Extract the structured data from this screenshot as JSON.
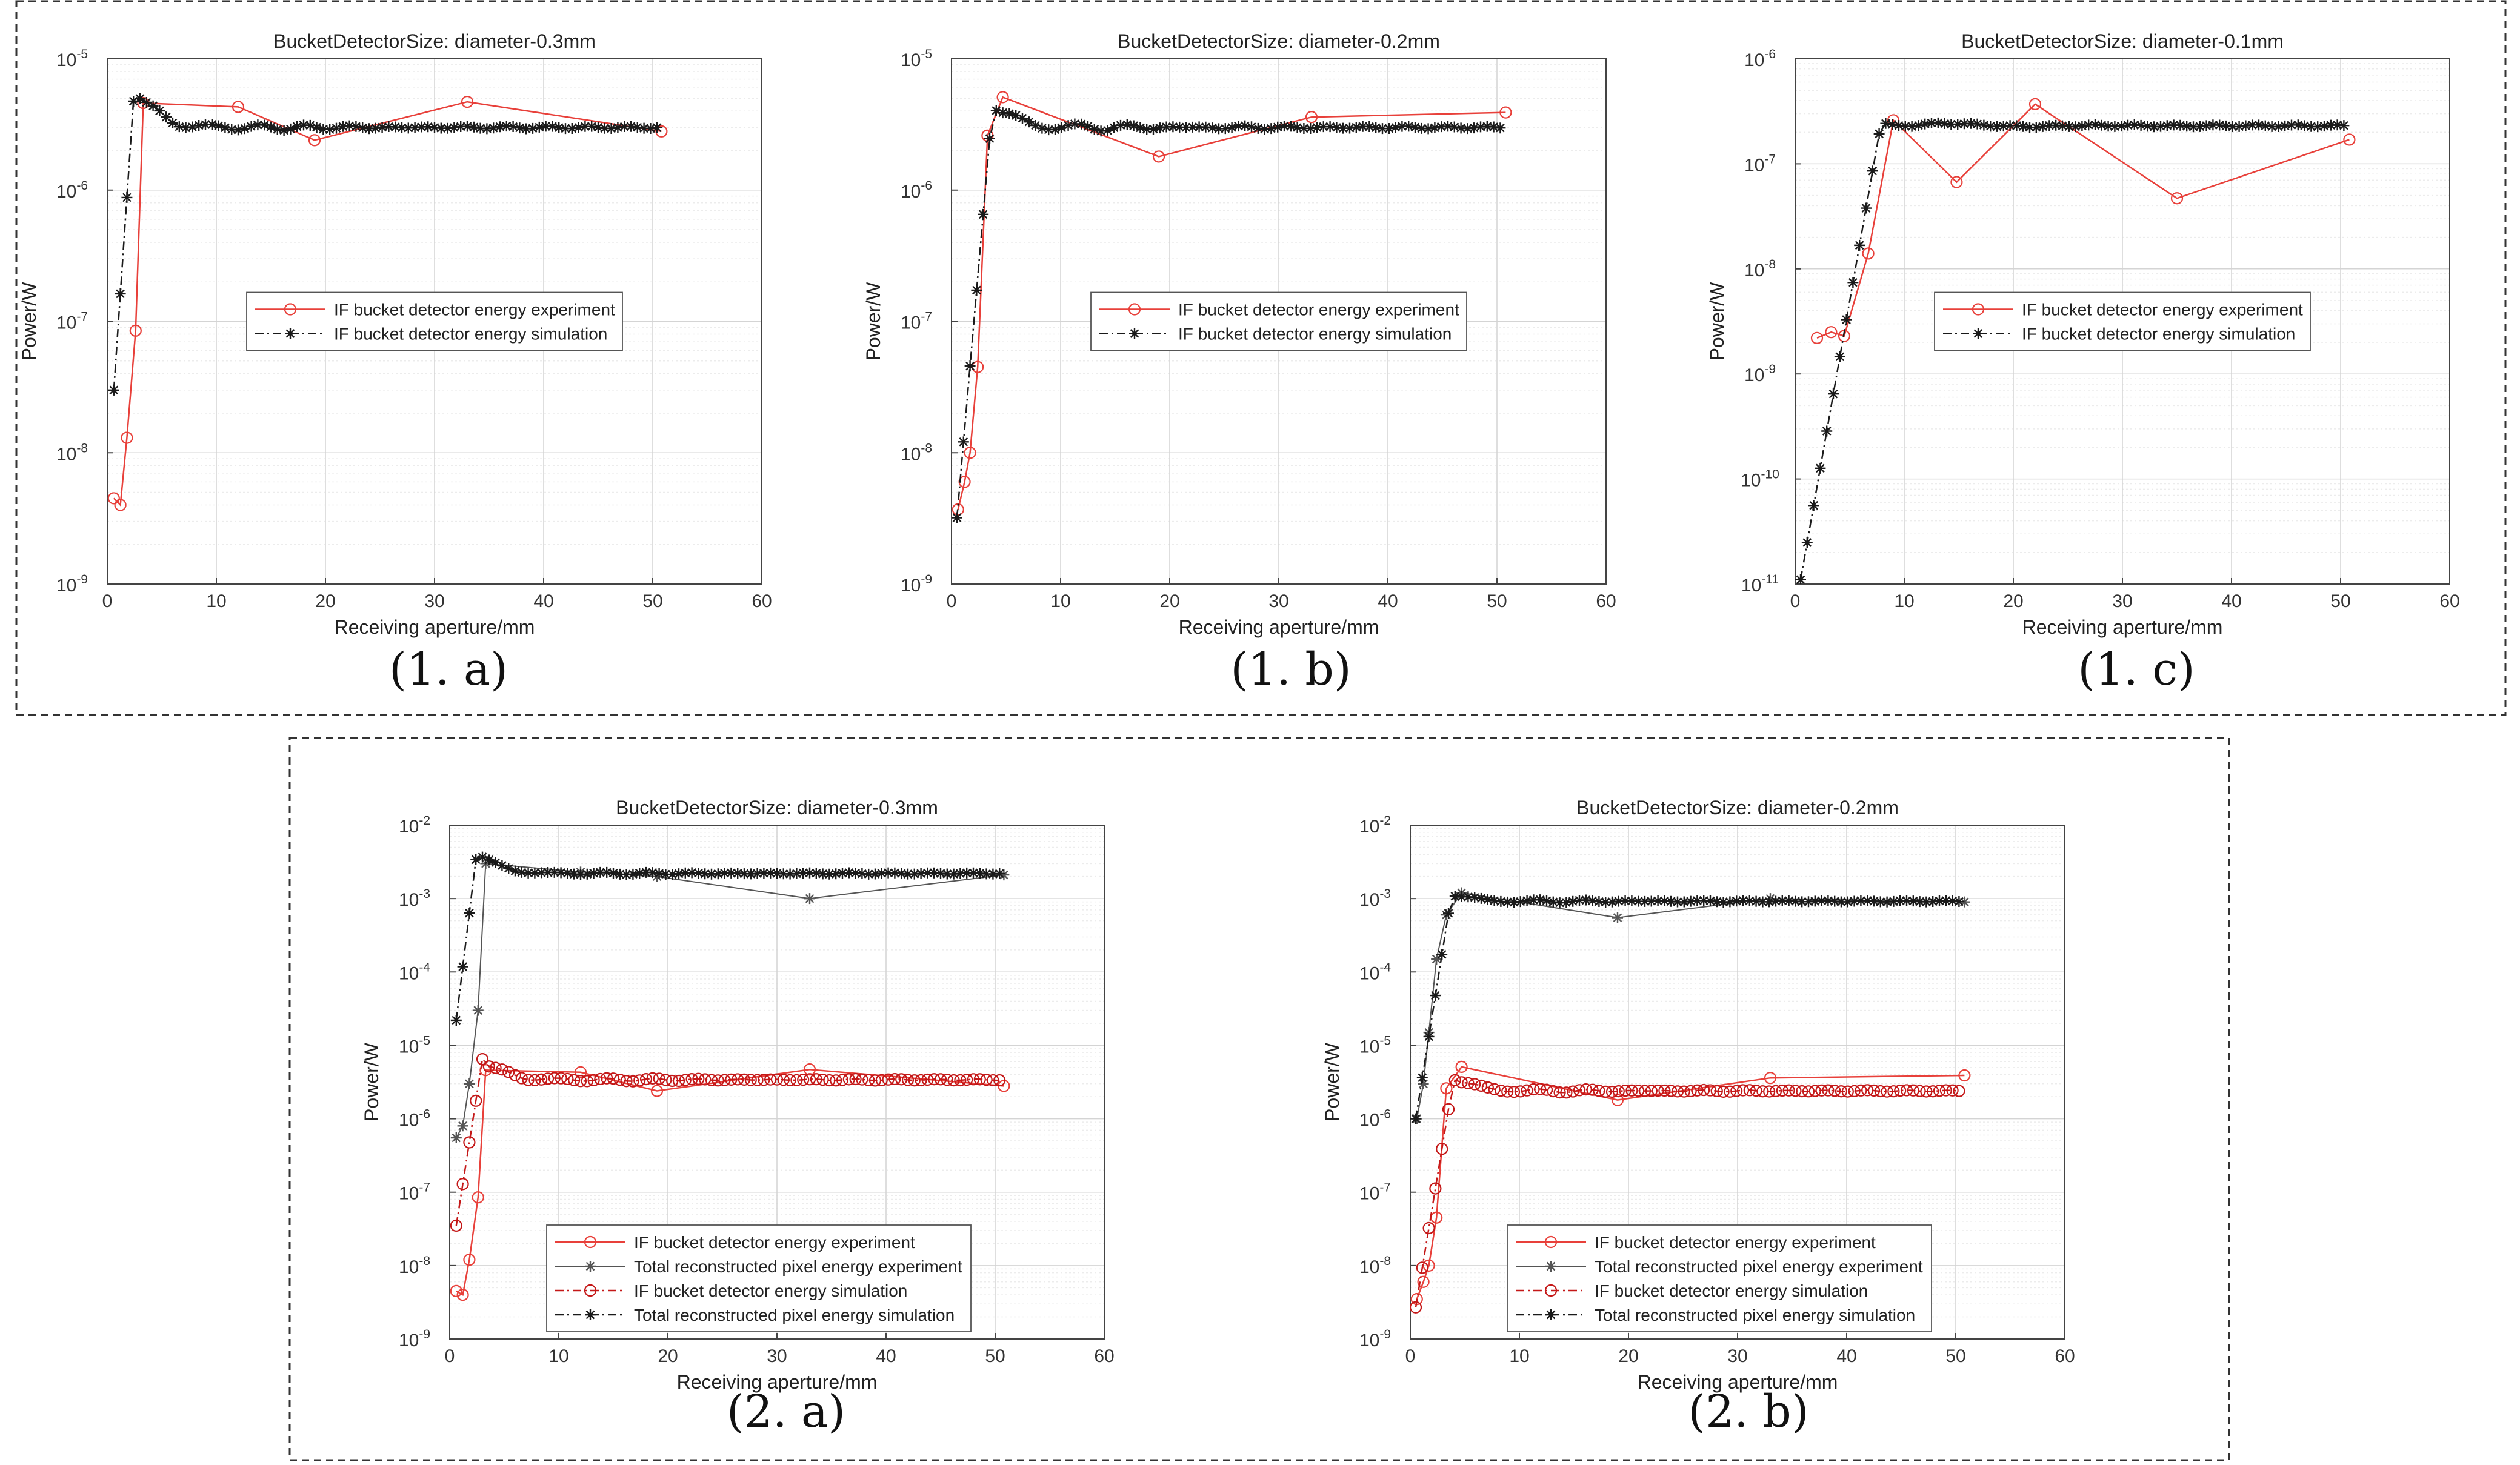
{
  "colors": {
    "experiment_red": "#e8403a",
    "simulation_black": "#1a1a1a",
    "axis": "#444444",
    "grid_major": "#d4d4d4",
    "grid_minor": "#ececec",
    "frame": "#333333"
  },
  "chart_data": [
    {
      "id": "1a",
      "type": "line",
      "panel_label": "(1. a)",
      "title": "BucketDetectorSize: diameter-0.3mm",
      "xlabel": "Receiving aperture/mm",
      "ylabel": "Power/W",
      "yscale": "log",
      "xlim": [
        0,
        60
      ],
      "xticks": [
        0,
        10,
        20,
        30,
        40,
        50,
        60
      ],
      "ylim_exp": [
        -9,
        -5
      ],
      "yticks": [
        "10^-9",
        "10^-8",
        "10^-7",
        "10^-6",
        "10^-5"
      ],
      "legend_position": "center",
      "series": [
        {
          "name": "IF bucket detector energy experiment",
          "kind": "exp_bucket",
          "x": [
            0.6,
            1.2,
            1.8,
            2.6,
            3.3,
            12.0,
            19.0,
            33.0,
            50.8
          ],
          "y": [
            4.5e-09,
            4e-09,
            1.3e-08,
            8.5e-08,
            4.6e-06,
            4.3e-06,
            2.4e-06,
            4.7e-06,
            2.8e-06
          ]
        },
        {
          "name": "IF bucket detector energy simulation",
          "kind": "sim_total",
          "func": {
            "x0": 0.6,
            "x1": 50.5,
            "step": 0.6,
            "rise_x0": 0.6,
            "rise_x1": 2.5,
            "rise_y0": 3e-08,
            "peak_x": 2.5,
            "peak": 6.3e-06,
            "plateau": 3e-06,
            "ripple_amp": 0.12,
            "ripple_period": 4.5,
            "ripple_decay": 10
          }
        }
      ]
    },
    {
      "id": "1b",
      "type": "line",
      "panel_label": "(1. b)",
      "title": "BucketDetectorSize: diameter-0.2mm",
      "xlabel": "Receiving aperture/mm",
      "ylabel": "Power/W",
      "yscale": "log",
      "xlim": [
        0,
        60
      ],
      "xticks": [
        0,
        10,
        20,
        30,
        40,
        50,
        60
      ],
      "ylim_exp": [
        -9,
        -5
      ],
      "yticks": [
        "10^-9",
        "10^-8",
        "10^-7",
        "10^-6",
        "10^-5"
      ],
      "legend_position": "center",
      "series": [
        {
          "name": "IF bucket detector energy experiment",
          "kind": "exp_bucket",
          "x": [
            0.6,
            1.2,
            1.7,
            2.4,
            3.3,
            4.7,
            19.0,
            33.0,
            50.8
          ],
          "y": [
            3.7e-09,
            6e-09,
            1e-08,
            4.5e-08,
            2.6e-06,
            5.1e-06,
            1.8e-06,
            3.6e-06,
            3.9e-06
          ]
        },
        {
          "name": "IF bucket detector energy simulation",
          "kind": "sim_total",
          "func": {
            "x0": 0.5,
            "x1": 50.5,
            "step": 0.6,
            "rise_x0": 0.5,
            "rise_x1": 3.8,
            "rise_y0": 3.2e-09,
            "peak_x": 3.8,
            "peak": 4.8e-06,
            "plateau": 3e-06,
            "ripple_amp": 0.12,
            "ripple_period": 5.0,
            "ripple_decay": 10
          }
        }
      ]
    },
    {
      "id": "1c",
      "type": "line",
      "panel_label": "(1. c)",
      "title": "BucketDetectorSize: diameter-0.1mm",
      "xlabel": "Receiving aperture/mm",
      "ylabel": "Power/W",
      "yscale": "log",
      "xlim": [
        0,
        60
      ],
      "xticks": [
        0,
        10,
        20,
        30,
        40,
        50,
        60
      ],
      "ylim_exp": [
        -11,
        -6
      ],
      "yticks": [
        "10^-11",
        "10^-10",
        "10^-9",
        "10^-8",
        "10^-7",
        "10^-6"
      ],
      "legend_position": "center",
      "series": [
        {
          "name": "IF bucket detector energy experiment",
          "kind": "exp_bucket",
          "x": [
            2.0,
            3.3,
            4.5,
            6.7,
            9.0,
            14.8,
            22.0,
            35.0,
            50.8
          ],
          "y": [
            2.2e-09,
            2.5e-09,
            2.3e-09,
            1.4e-08,
            2.6e-07,
            6.7e-08,
            3.7e-07,
            4.7e-08,
            1.7e-07
          ]
        },
        {
          "name": "IF bucket detector energy simulation",
          "kind": "sim_total",
          "func": {
            "x0": 0.5,
            "x1": 50.5,
            "step": 0.6,
            "rise_x0": 0.5,
            "rise_x1": 8.0,
            "rise_y0": 1.1e-11,
            "peak_x": 8.0,
            "peak": 2.9e-07,
            "plateau": 2.3e-07,
            "ripple_amp": 0.15,
            "ripple_period": 14,
            "ripple_decay": 6
          }
        }
      ]
    },
    {
      "id": "2a",
      "type": "line",
      "panel_label": "(2. a)",
      "title": "BucketDetectorSize: diameter-0.3mm",
      "xlabel": "Receiving aperture/mm",
      "ylabel": "Power/W",
      "yscale": "log",
      "xlim": [
        0,
        60
      ],
      "xticks": [
        0,
        10,
        20,
        30,
        40,
        50,
        60
      ],
      "ylim_exp": [
        -9,
        -2
      ],
      "yticks": [
        "10^-9",
        "10^-8",
        "10^-7",
        "10^-6",
        "10^-5",
        "10^-4",
        "10^-3",
        "10^-2"
      ],
      "legend_position": "bottom-center",
      "series": [
        {
          "name": "IF bucket detector energy experiment",
          "kind": "exp_bucket",
          "x": [
            0.6,
            1.2,
            1.8,
            2.6,
            3.3,
            12.0,
            19.0,
            33.0,
            50.8
          ],
          "y": [
            4.5e-09,
            4e-09,
            1.2e-08,
            8.5e-08,
            4.6e-06,
            4.3e-06,
            2.4e-06,
            4.7e-06,
            2.8e-06
          ]
        },
        {
          "name": "Total reconstructed pixel energy experiment",
          "kind": "exp_total",
          "x": [
            0.6,
            1.2,
            1.8,
            2.6,
            3.3,
            12.0,
            19.0,
            33.0,
            50.8
          ],
          "y": [
            5.5e-07,
            8e-07,
            3e-06,
            3e-05,
            0.003,
            0.0023,
            0.002,
            0.001,
            0.0021
          ]
        },
        {
          "name": "IF bucket detector energy simulation",
          "kind": "sim_bucket",
          "func": {
            "x0": 0.6,
            "x1": 50.5,
            "step": 0.6,
            "rise_x0": 0.6,
            "rise_x1": 3.0,
            "rise_y0": 3.5e-08,
            "peak_x": 3.0,
            "peak": 6.5e-06,
            "plateau": 3.4e-06,
            "ripple_amp": 0.12,
            "ripple_period": 4.5,
            "ripple_decay": 10
          }
        },
        {
          "name": "Total reconstructed pixel energy simulation",
          "kind": "sim_total",
          "func": {
            "x0": 0.6,
            "x1": 50.5,
            "step": 0.6,
            "rise_x0": 0.6,
            "rise_x1": 2.5,
            "rise_y0": 2.2e-05,
            "peak_x": 2.5,
            "peak": 0.0045,
            "plateau": 0.0022,
            "ripple_amp": 0.08,
            "ripple_period": 4.5,
            "ripple_decay": 10
          }
        }
      ]
    },
    {
      "id": "2b",
      "type": "line",
      "panel_label": "(2. b)",
      "title": "BucketDetectorSize: diameter-0.2mm",
      "xlabel": "Receiving aperture/mm",
      "ylabel": "Power/W",
      "yscale": "log",
      "xlim": [
        0,
        60
      ],
      "xticks": [
        0,
        10,
        20,
        30,
        40,
        50,
        60
      ],
      "ylim_exp": [
        -9,
        -2
      ],
      "yticks": [
        "10^-9",
        "10^-8",
        "10^-7",
        "10^-6",
        "10^-5",
        "10^-4",
        "10^-3",
        "10^-2"
      ],
      "legend_position": "bottom-center",
      "series": [
        {
          "name": "IF bucket detector energy experiment",
          "kind": "exp_bucket",
          "x": [
            0.6,
            1.2,
            1.7,
            2.4,
            3.3,
            4.7,
            19.0,
            33.0,
            50.8
          ],
          "y": [
            3.5e-09,
            6e-09,
            1e-08,
            4.5e-08,
            2.6e-06,
            5.1e-06,
            1.8e-06,
            3.6e-06,
            3.9e-06
          ]
        },
        {
          "name": "Total reconstructed pixel energy experiment",
          "kind": "exp_total",
          "x": [
            0.6,
            1.2,
            1.7,
            2.4,
            3.3,
            4.7,
            19.0,
            33.0,
            50.8
          ],
          "y": [
            1e-06,
            3e-06,
            1.5e-05,
            0.00015,
            0.0006,
            0.0012,
            0.00055,
            0.001,
            0.0009
          ]
        },
        {
          "name": "IF bucket detector energy simulation",
          "kind": "sim_bucket",
          "func": {
            "x0": 0.5,
            "x1": 50.5,
            "step": 0.6,
            "rise_x0": 0.5,
            "rise_x1": 4.0,
            "rise_y0": 2.7e-09,
            "peak_x": 4.0,
            "peak": 3.8e-06,
            "plateau": 2.4e-06,
            "ripple_amp": 0.1,
            "ripple_period": 5,
            "ripple_decay": 10
          }
        },
        {
          "name": "Total reconstructed pixel energy simulation",
          "kind": "sim_total",
          "func": {
            "x0": 0.5,
            "x1": 50.5,
            "step": 0.6,
            "rise_x0": 0.5,
            "rise_x1": 3.8,
            "rise_y0": 1e-06,
            "peak_x": 3.8,
            "peak": 0.0012,
            "plateau": 0.00092,
            "ripple_amp": 0.08,
            "ripple_period": 5,
            "ripple_decay": 10
          }
        }
      ]
    }
  ]
}
